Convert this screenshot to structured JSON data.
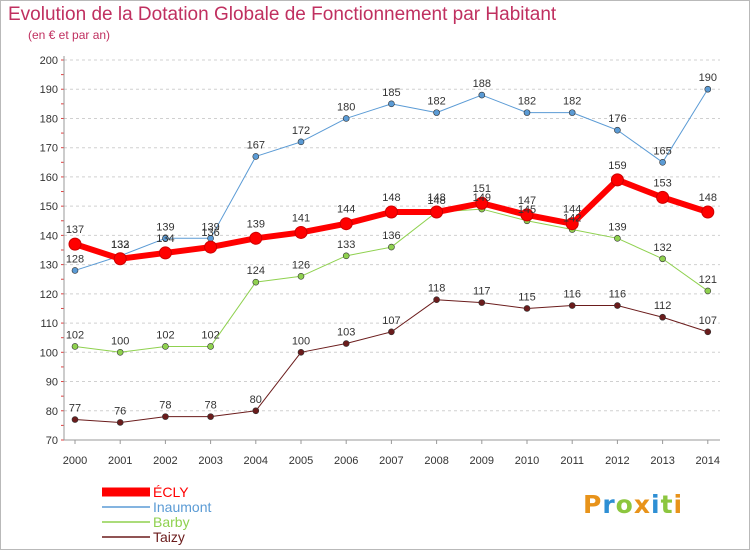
{
  "title": "Evolution de la Dotation Globale de Fonctionnement par Habitant",
  "subtitle": "(en € et par an)",
  "logo": {
    "text": "Proxiti",
    "letters": [
      {
        "ch": "P",
        "color": "#e8931a"
      },
      {
        "ch": "r",
        "color": "#2e8fd4"
      },
      {
        "ch": "o",
        "color": "#8cc63f"
      },
      {
        "ch": "x",
        "color": "#e8931a"
      },
      {
        "ch": "i",
        "color": "#2e8fd4"
      },
      {
        "ch": "t",
        "color": "#8cc63f"
      },
      {
        "ch": "i",
        "color": "#e8931a"
      }
    ]
  },
  "chart_data": {
    "type": "line",
    "title": "Evolution de la Dotation Globale de Fonctionnement par Habitant",
    "subtitle": "(en € et par an)",
    "xlabel": "",
    "ylabel": "",
    "x": [
      "2000",
      "2001",
      "2002",
      "2003",
      "2004",
      "2005",
      "2006",
      "2007",
      "2008",
      "2009",
      "2010",
      "2011",
      "2012",
      "2013",
      "2014"
    ],
    "ylim": [
      70,
      200
    ],
    "yticks": [
      70,
      80,
      90,
      100,
      110,
      120,
      130,
      140,
      150,
      160,
      170,
      180,
      190,
      200
    ],
    "grid": "horizontal dashed",
    "legend_position": "bottom-left",
    "series": [
      {
        "name": "Taizy",
        "color": "#6b1c1c",
        "width": 1,
        "values": [
          77,
          76,
          78,
          78,
          80,
          100,
          103,
          107,
          118,
          117,
          115,
          116,
          116,
          112,
          107
        ]
      },
      {
        "name": "Barby",
        "color": "#8fd14f",
        "width": 1,
        "values": [
          102,
          100,
          102,
          102,
          124,
          126,
          133,
          136,
          148,
          149,
          145,
          142,
          139,
          132,
          121
        ]
      },
      {
        "name": "Inaumont",
        "color": "#5b9bd5",
        "width": 1,
        "values": [
          128,
          133,
          139,
          139,
          167,
          172,
          180,
          185,
          182,
          188,
          182,
          182,
          176,
          165,
          190
        ]
      },
      {
        "name": "ÉCLY",
        "color": "#ff0000",
        "width": 6,
        "values": [
          137,
          132,
          134,
          136,
          139,
          141,
          144,
          148,
          148,
          151,
          147,
          144,
          159,
          153,
          148
        ]
      }
    ],
    "legend_order": [
      "ÉCLY",
      "Inaumont",
      "Barby",
      "Taizy"
    ]
  }
}
